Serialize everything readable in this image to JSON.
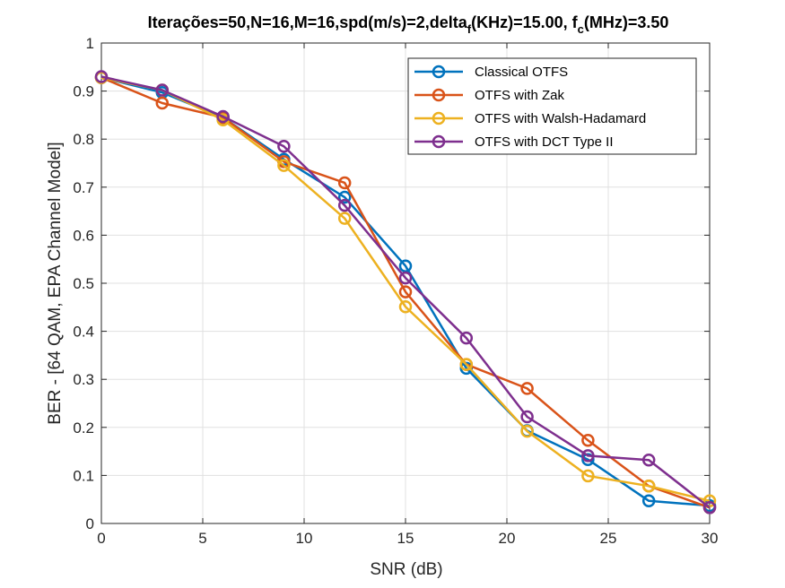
{
  "chart_data": {
    "type": "line",
    "title": "Iterações=50,N=16,M=16,spd(m/s)=2,delta",
    "title_sub1": "f",
    "title_mid": "(KHz)=15.00, f",
    "title_sub2": "c",
    "title_end": "(MHz)=3.50",
    "xlabel": "SNR (dB)",
    "ylabel": "BER - [64 QAM, EPA Channel Model]",
    "xlim": [
      0,
      30
    ],
    "ylim": [
      0,
      1
    ],
    "xticks": [
      "0",
      "5",
      "10",
      "15",
      "20",
      "25",
      "30"
    ],
    "yticks": [
      "0",
      "0.1",
      "0.2",
      "0.3",
      "0.4",
      "0.5",
      "0.6",
      "0.7",
      "0.8",
      "0.9",
      "1"
    ],
    "grid": true,
    "legend_position": "top-right",
    "x": [
      0,
      3,
      6,
      9,
      12,
      15,
      18,
      21,
      24,
      27,
      30
    ],
    "series": [
      {
        "name": "Classical OTFS",
        "color": "#0072BD",
        "values": [
          0.928,
          0.897,
          0.845,
          0.758,
          0.679,
          0.536,
          0.323,
          0.193,
          0.133,
          0.047,
          0.037
        ]
      },
      {
        "name": "OTFS with Zak",
        "color": "#D95319",
        "values": [
          0.928,
          0.875,
          0.845,
          0.753,
          0.709,
          0.482,
          0.331,
          0.281,
          0.173,
          0.078,
          0.033
        ]
      },
      {
        "name": "OTFS with Walsh-Hadamard",
        "color": "#EDB120",
        "values": [
          0.928,
          0.902,
          0.84,
          0.745,
          0.635,
          0.451,
          0.331,
          0.192,
          0.099,
          0.078,
          0.047
        ]
      },
      {
        "name": "OTFS with DCT Type II",
        "color": "#7E2F8E",
        "values": [
          0.93,
          0.902,
          0.847,
          0.785,
          0.662,
          0.511,
          0.386,
          0.222,
          0.141,
          0.132,
          0.033
        ]
      }
    ]
  }
}
